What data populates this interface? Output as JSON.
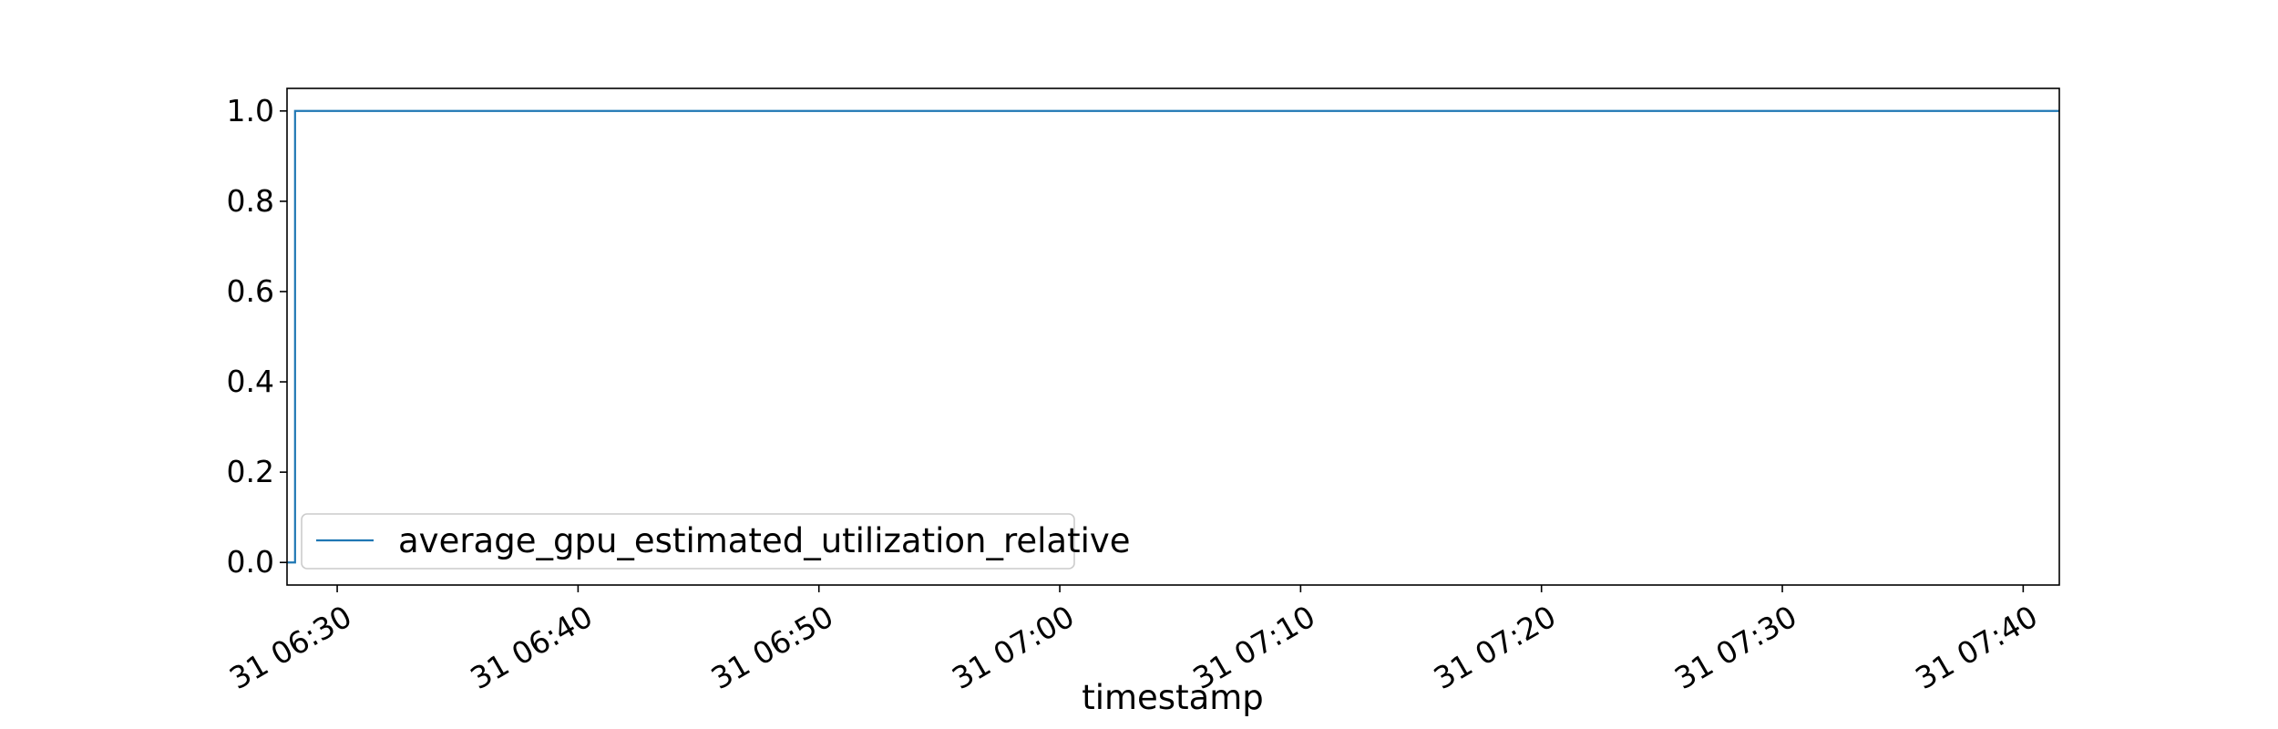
{
  "chart_data": {
    "type": "line",
    "title": "",
    "xlabel": "timestamp",
    "ylabel": "",
    "xlim": [
      "31 06:27:55",
      "31 07:41:30"
    ],
    "ylim": [
      -0.05,
      1.05
    ],
    "x_ticks": [
      "31 06:30",
      "31 06:40",
      "31 06:50",
      "31 07:00",
      "31 07:10",
      "31 07:20",
      "31 07:30",
      "31 07:40"
    ],
    "y_ticks": [
      "0.0",
      "0.2",
      "0.4",
      "0.6",
      "0.8",
      "1.0"
    ],
    "y_tick_values": [
      0.0,
      0.2,
      0.4,
      0.6,
      0.8,
      1.0
    ],
    "grid": false,
    "legend_position": "lower-left",
    "series": [
      {
        "name": "average_gpu_estimated_utilization_relative",
        "color": "#1f77b4",
        "points": [
          {
            "x": "31 06:27:55",
            "y": 0.0
          },
          {
            "x": "31 06:28:15",
            "y": 0.0
          },
          {
            "x": "31 06:28:15",
            "y": 1.0
          },
          {
            "x": "31 07:41:30",
            "y": 1.0
          }
        ]
      }
    ]
  }
}
